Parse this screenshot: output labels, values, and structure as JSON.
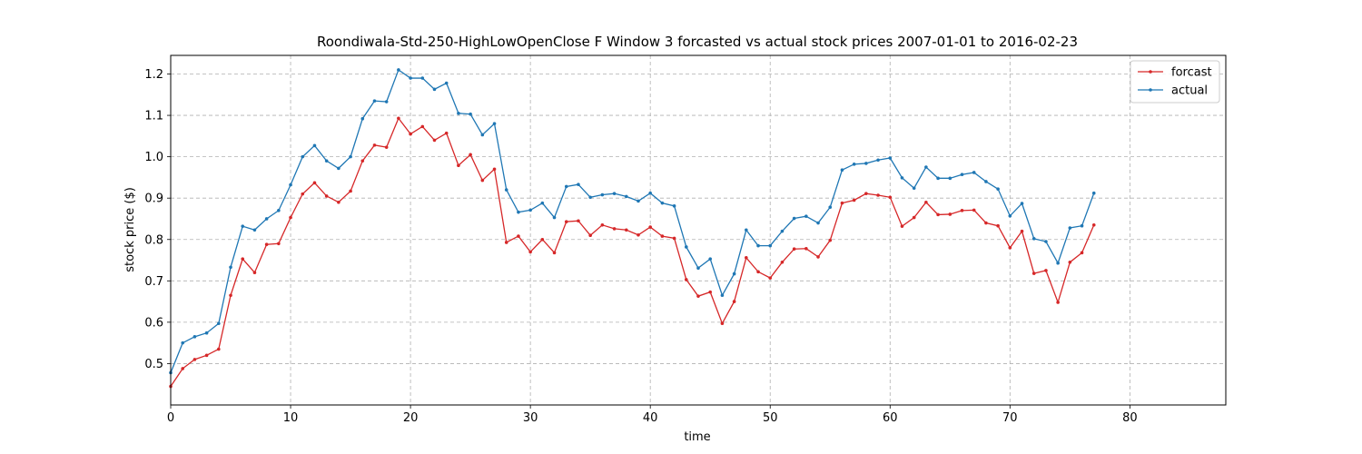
{
  "chart_data": {
    "type": "line",
    "title": "Roondiwala-Std-250-HighLowOpenClose F Window 3 forcasted vs actual stock prices 2007-01-01 to 2016-02-23",
    "xlabel": "time",
    "ylabel": "stock price ($)",
    "xlim": [
      0,
      88
    ],
    "ylim": [
      0.4,
      1.245
    ],
    "xticks": [
      0,
      10,
      20,
      30,
      40,
      50,
      60,
      70,
      80
    ],
    "yticks": [
      0.5,
      0.6,
      0.7,
      0.8,
      0.9,
      1.0,
      1.1,
      1.2
    ],
    "grid": true,
    "legend": "top-right",
    "series": [
      {
        "name": "forcast",
        "color": "#d62728",
        "values": [
          0.445,
          0.488,
          0.51,
          0.52,
          0.535,
          0.665,
          0.753,
          0.72,
          0.788,
          0.79,
          0.853,
          0.91,
          0.937,
          0.905,
          0.89,
          0.917,
          0.99,
          1.028,
          1.023,
          1.093,
          1.055,
          1.073,
          1.04,
          1.057,
          0.979,
          1.005,
          0.943,
          0.97,
          0.793,
          0.808,
          0.77,
          0.8,
          0.768,
          0.843,
          0.845,
          0.81,
          0.835,
          0.826,
          0.823,
          0.811,
          0.83,
          0.808,
          0.803,
          0.703,
          0.663,
          0.673,
          0.597,
          0.65,
          0.756,
          0.722,
          0.707,
          0.745,
          0.777,
          0.778,
          0.758,
          0.798,
          0.888,
          0.895,
          0.911,
          0.907,
          0.902,
          0.832,
          0.853,
          0.89,
          0.86,
          0.861,
          0.87,
          0.871,
          0.84,
          0.833,
          0.78,
          0.82,
          0.718,
          0.725,
          0.648,
          0.745,
          0.768,
          0.835
        ]
      },
      {
        "name": "actual",
        "color": "#1f77b4",
        "values": [
          0.478,
          0.55,
          0.565,
          0.574,
          0.597,
          0.733,
          0.832,
          0.823,
          0.85,
          0.87,
          0.932,
          1.0,
          1.027,
          0.99,
          0.972,
          1.0,
          1.092,
          1.135,
          1.133,
          1.21,
          1.19,
          1.19,
          1.163,
          1.178,
          1.105,
          1.103,
          1.053,
          1.08,
          0.92,
          0.866,
          0.871,
          0.888,
          0.853,
          0.928,
          0.933,
          0.902,
          0.908,
          0.911,
          0.904,
          0.893,
          0.912,
          0.888,
          0.881,
          0.782,
          0.731,
          0.753,
          0.665,
          0.717,
          0.823,
          0.785,
          0.785,
          0.82,
          0.851,
          0.856,
          0.84,
          0.878,
          0.968,
          0.982,
          0.984,
          0.992,
          0.997,
          0.949,
          0.924,
          0.975,
          0.948,
          0.948,
          0.957,
          0.962,
          0.94,
          0.922,
          0.857,
          0.887,
          0.802,
          0.795,
          0.743,
          0.828,
          0.833,
          0.912
        ]
      }
    ]
  }
}
